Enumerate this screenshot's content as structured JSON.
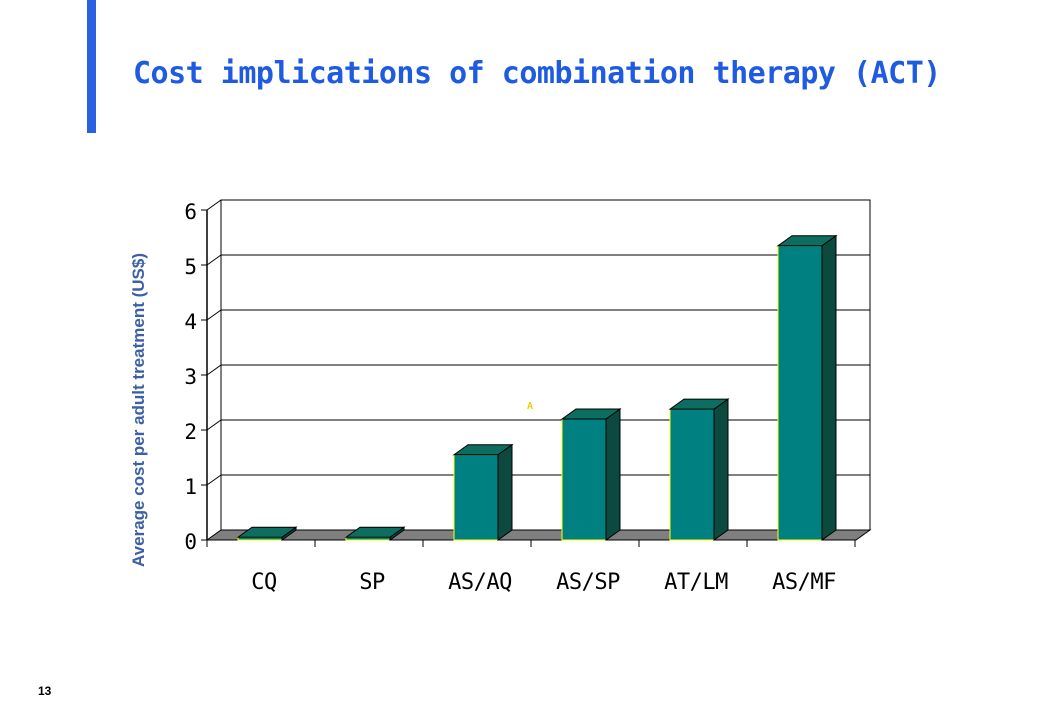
{
  "slide": {
    "title": "Cost implications of combination therapy (ACT)",
    "page_number": "13",
    "stray_mark": "A",
    "colors": {
      "accent_bar": "#2962e0",
      "title": "#1f5be0",
      "ylabel": "#3d5fa5",
      "bar_front": "#008080",
      "bar_side": "#0c4a40",
      "bar_top": "#0d6d60",
      "bar_edge": "#ffff00",
      "floor": "#7f7f7f",
      "gridline": "#000000",
      "stray_mark": "#e6d200"
    }
  },
  "chart_data": {
    "type": "bar",
    "style": "3d-column",
    "categories": [
      "CQ",
      "SP",
      "AS/AQ",
      "AS/SP",
      "AT/LM",
      "AS/MF"
    ],
    "values": [
      0.05,
      0.05,
      1.55,
      2.2,
      2.38,
      5.35
    ],
    "ylabel": "Average cost per adult treatment (US$)",
    "xlabel": "",
    "ylim": [
      0,
      6
    ],
    "yticks": [
      "0",
      "1",
      "2",
      "3",
      "4",
      "5",
      "6"
    ],
    "grid": true,
    "legend": "none"
  }
}
